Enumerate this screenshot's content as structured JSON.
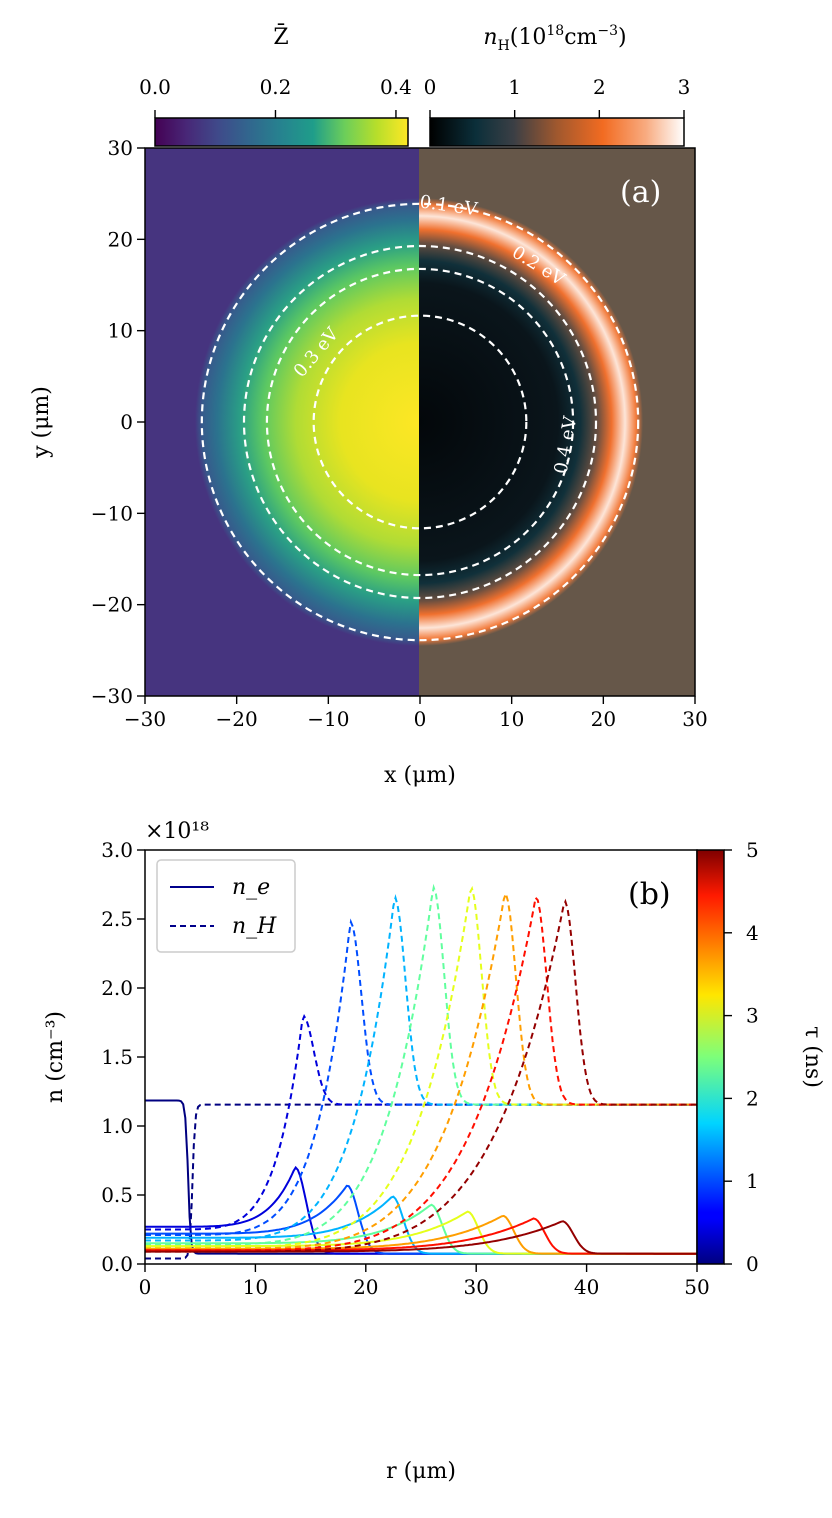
{
  "chart_data": [
    {
      "type": "heatmap",
      "panel_label": "(a)",
      "xlabel": "x (μm)",
      "ylabel": "y (μm)",
      "xlim": [
        -30,
        30
      ],
      "ylim": [
        -30,
        30
      ],
      "xticks": [
        "−30",
        "−20",
        "−10",
        "0",
        "10",
        "20",
        "30"
      ],
      "yticks": [
        "30",
        "20",
        "10",
        "0",
        "−10",
        "−20",
        "−30"
      ],
      "left_half": {
        "quantity": "Z̄",
        "colormap": "viridis",
        "range": [
          0.0,
          0.42
        ],
        "colorbar_ticks": [
          "0.0",
          "0.2",
          "0.4"
        ]
      },
      "right_half": {
        "quantity": "n_H (10^18 cm^-3)",
        "colormap": "hot-like",
        "range": [
          0,
          3
        ],
        "colorbar_ticks": [
          "0",
          "1",
          "2",
          "3"
        ]
      },
      "cbar_left_title": "Z̄",
      "cbar_right_title": "n",
      "cbar_right_title_sub": "H",
      "cbar_right_title_rest": "(10",
      "cbar_right_title_sup": "18",
      "cbar_right_title_unit": "cm",
      "cbar_right_title_unit_sup": "−3",
      "cbar_right_title_close": ")",
      "contours": [
        {
          "label": "0.1 eV",
          "radius": 23.8
        },
        {
          "label": "0.2 eV",
          "radius": 19.2
        },
        {
          "label": "0.3 eV",
          "radius": 16.7
        },
        {
          "label": "0.4 eV",
          "radius": 11.6
        }
      ]
    },
    {
      "type": "line",
      "panel_label": "(b)",
      "xlabel": "r (μm)",
      "ylabel": "n (cm⁻³)",
      "xlim": [
        0,
        50
      ],
      "ylim": [
        0,
        3.0
      ],
      "y_scale_label": "×10¹⁸",
      "xticks": [
        "0",
        "10",
        "20",
        "30",
        "40",
        "50"
      ],
      "yticks": [
        "0.0",
        "0.5",
        "1.0",
        "1.5",
        "2.0",
        "2.5",
        "3.0"
      ],
      "legend": [
        {
          "name": "n_e",
          "style": "solid"
        },
        {
          "name": "n_H",
          "style": "dashed"
        }
      ],
      "colorbar": {
        "label": "τ (ns)",
        "range": [
          0,
          5
        ],
        "ticks": [
          "0",
          "1",
          "2",
          "3",
          "4",
          "5"
        ],
        "colormap": "jet"
      },
      "series": [
        {
          "tau": 0.0,
          "ne_front": 3.9,
          "ne_base": 1.185,
          "ne_peak": null,
          "nH_front": 4.3,
          "nH_base": 0.04,
          "nH_peak": null
        },
        {
          "tau": 0.45,
          "ne_front": 13.6,
          "ne_base": 0.27,
          "ne_peak": 0.7,
          "nH_front": 14.3,
          "nH_base": 0.25,
          "nH_peak": 1.8
        },
        {
          "tau": 1.0,
          "ne_front": 18.3,
          "ne_base": 0.22,
          "ne_peak": 0.57,
          "nH_front": 18.6,
          "nH_base": 0.21,
          "nH_peak": 2.48
        },
        {
          "tau": 1.5,
          "ne_front": 22.4,
          "ne_base": 0.19,
          "ne_peak": 0.49,
          "nH_front": 22.6,
          "nH_base": 0.17,
          "nH_peak": 2.66
        },
        {
          "tau": 2.35,
          "ne_front": 25.9,
          "ne_base": 0.15,
          "ne_peak": 0.43,
          "nH_front": 26.1,
          "nH_base": 0.14,
          "nH_peak": 2.73
        },
        {
          "tau": 3.0,
          "ne_front": 29.2,
          "ne_base": 0.13,
          "ne_peak": 0.38,
          "nH_front": 29.5,
          "nH_base": 0.12,
          "nH_peak": 2.73
        },
        {
          "tau": 3.6,
          "ne_front": 32.4,
          "ne_base": 0.11,
          "ne_peak": 0.35,
          "nH_front": 32.6,
          "nH_base": 0.11,
          "nH_peak": 2.69
        },
        {
          "tau": 4.3,
          "ne_front": 35.2,
          "ne_base": 0.1,
          "ne_peak": 0.33,
          "nH_front": 35.4,
          "nH_base": 0.1,
          "nH_peak": 2.66
        },
        {
          "tau": 4.9,
          "ne_front": 37.8,
          "ne_base": 0.09,
          "ne_peak": 0.31,
          "nH_front": 38.0,
          "nH_base": 0.09,
          "nH_peak": 2.63
        }
      ],
      "ambient": {
        "ne": 0.075,
        "nH": 1.155
      }
    }
  ]
}
